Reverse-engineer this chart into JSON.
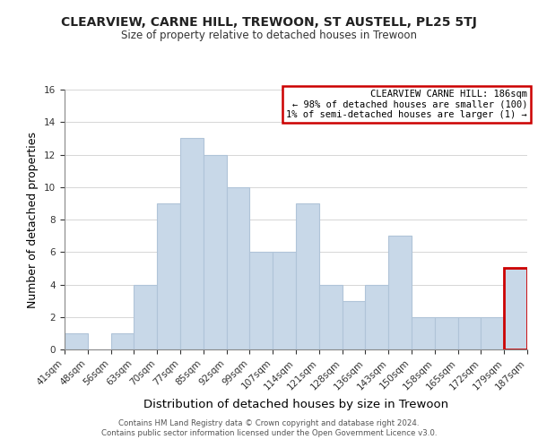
{
  "title": "CLEARVIEW, CARNE HILL, TREWOON, ST AUSTELL, PL25 5TJ",
  "subtitle": "Size of property relative to detached houses in Trewoon",
  "xlabel": "Distribution of detached houses by size in Trewoon",
  "ylabel": "Number of detached properties",
  "footer_line1": "Contains HM Land Registry data © Crown copyright and database right 2024.",
  "footer_line2": "Contains public sector information licensed under the Open Government Licence v3.0.",
  "bin_labels": [
    "41sqm",
    "48sqm",
    "56sqm",
    "63sqm",
    "70sqm",
    "77sqm",
    "85sqm",
    "92sqm",
    "99sqm",
    "107sqm",
    "114sqm",
    "121sqm",
    "128sqm",
    "136sqm",
    "143sqm",
    "150sqm",
    "158sqm",
    "165sqm",
    "172sqm",
    "179sqm",
    "187sqm"
  ],
  "bar_heights": [
    1,
    0,
    1,
    4,
    9,
    13,
    12,
    10,
    6,
    6,
    9,
    4,
    3,
    4,
    7,
    2,
    2,
    2,
    2,
    5
  ],
  "bar_color": "#c8d8e8",
  "bar_edge_color": "#b0c4d8",
  "highlight_bar_index": 19,
  "highlight_edge_color": "#cc0000",
  "annotation_title": "CLEARVIEW CARNE HILL: 186sqm",
  "annotation_line1": "← 98% of detached houses are smaller (100)",
  "annotation_line2": "1% of semi-detached houses are larger (1) →",
  "annotation_box_color": "#ffffff",
  "annotation_border_color": "#cc0000",
  "ylim": [
    0,
    16
  ],
  "yticks": [
    0,
    2,
    4,
    6,
    8,
    10,
    12,
    14,
    16
  ]
}
